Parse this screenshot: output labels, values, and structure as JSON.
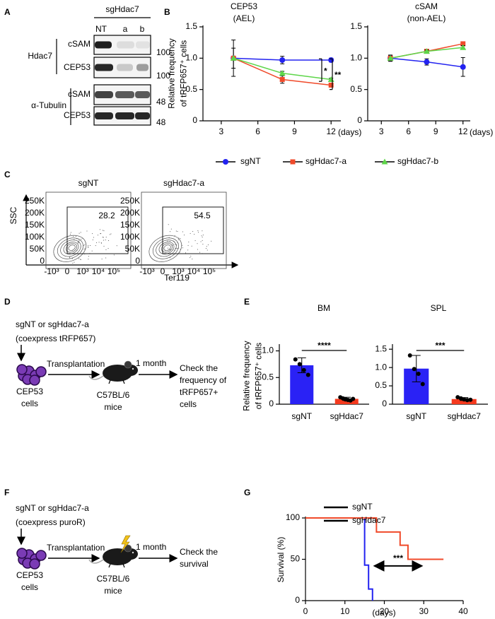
{
  "panel_letters": [
    "A",
    "B",
    "C",
    "D",
    "E",
    "F",
    "G"
  ],
  "blot": {
    "group": "sgHdac7",
    "lanes": [
      "NT",
      "a",
      "b"
    ],
    "proteins": [
      {
        "name": "Hdac7",
        "rows": [
          "cSAM",
          "CEP53"
        ],
        "markers": [
          100,
          100
        ]
      },
      {
        "name": "α-Tubulin",
        "rows": [
          "cSAM",
          "CEP53"
        ],
        "markers": [
          48,
          48
        ]
      }
    ]
  },
  "flow": {
    "y_label": "SSC",
    "x_label": "Ter119",
    "yticks": [
      "250K",
      "200K",
      "150K",
      "100K",
      "50K",
      "0"
    ],
    "xticks": [
      "-10³",
      "0",
      "10³",
      "10⁴",
      "10⁵"
    ],
    "samples": [
      {
        "name": "sgNT",
        "gate": 28.2
      },
      {
        "name": "sgHdac7-a",
        "gate": 54.5
      }
    ]
  },
  "schemes": [
    {
      "construct": [
        "sgNT or sgHdac7-a",
        "(coexpress tRFP657)"
      ],
      "step1": "Transplantation",
      "step2": "1 month",
      "cells": [
        "CEP53",
        "cells"
      ],
      "mice": [
        "C57BL/6",
        "mice"
      ],
      "readout": [
        "Check the",
        "frequency of",
        "tRFP657+",
        "cells"
      ]
    },
    {
      "construct": [
        "sgNT or sgHdac7-a",
        "(coexpress puroR)"
      ],
      "step1": "Transplantation",
      "step2": "1 month",
      "cells": [
        "CEP53",
        "cells"
      ],
      "mice": [
        "C57BL/6",
        "mice"
      ],
      "readout": [
        "Check the",
        "survival"
      ]
    }
  ],
  "chart_data": [
    {
      "type": "line",
      "title": "CEP53",
      "subtitle": "(AEL)",
      "y_label": [
        "Relative frequency",
        "of tRFP657⁺ cells"
      ],
      "x_label": "(days)",
      "x": [
        4,
        8,
        12
      ],
      "xlim": [
        1.5,
        12.8
      ],
      "xticks": [
        3,
        6,
        9,
        12
      ],
      "ylim": [
        0,
        1.5
      ],
      "yticks": [
        0,
        0.5,
        {
          "value": 1,
          "label": "1.0"
        },
        1.5
      ],
      "series": [
        {
          "name": "sgNT",
          "color": "#2323f0",
          "marker": "circle",
          "values": [
            1,
            0.97,
            0.97
          ],
          "errors": [
            0.02,
            0.06,
            0.03
          ]
        },
        {
          "name": "sgHdac7-a",
          "color": "#f04a2a",
          "marker": "square",
          "values": [
            1,
            0.66,
            0.57
          ],
          "errors": [
            0.29,
            0.06,
            0.02
          ]
        },
        {
          "name": "sgHdac7-b",
          "color": "#5ed64a",
          "marker": "triangle",
          "values": [
            1,
            0.76,
            0.66
          ],
          "errors": [
            0.16,
            0.03,
            0.02
          ]
        }
      ],
      "annotations": [
        "*",
        "**"
      ]
    },
    {
      "type": "line",
      "title": "cSAM",
      "subtitle": "(non-AEL)",
      "x_label": "(days)",
      "x": [
        4,
        8,
        12
      ],
      "xlim": [
        1.5,
        12.8
      ],
      "xticks": [
        3,
        6,
        9,
        12
      ],
      "ylim": [
        0,
        1.5
      ],
      "yticks": [
        0,
        0.5,
        {
          "value": 1,
          "label": "1.0"
        },
        1.5
      ],
      "series": [
        {
          "color": "#2323f0",
          "marker": "circle",
          "values": [
            1,
            0.94,
            0.86
          ],
          "errors": [
            0.04,
            0.05,
            0.15
          ]
        },
        {
          "color": "#f04a2a",
          "marker": "square",
          "values": [
            1,
            1.11,
            1.23
          ],
          "errors": [
            0.03,
            0.02,
            0.03
          ]
        },
        {
          "color": "#5ed64a",
          "marker": "triangle",
          "values": [
            1,
            1.11,
            1.17
          ],
          "errors": [
            0.05,
            0.02,
            0.03
          ]
        }
      ]
    },
    {
      "type": "bar",
      "title": "BM",
      "y_label": [
        "Relative frequency",
        "of tRFP657⁺ cells"
      ],
      "categories": [
        "sgNT",
        "sgHdac7"
      ],
      "colors": [
        "#2a22f5",
        "#f53a1e"
      ],
      "values": [
        0.73,
        0.1
      ],
      "errors": [
        0.14,
        0.03
      ],
      "points": [
        [
          0.84,
          0.75,
          0.64,
          0.55
        ],
        [
          0.13,
          0.11,
          0.09,
          0.08,
          0.07,
          0.1
        ]
      ],
      "ylim": [
        0,
        1.1
      ],
      "yticks": [
        0,
        0.5,
        {
          "value": 1,
          "label": "1.0"
        }
      ],
      "annotation": "****"
    },
    {
      "type": "bar",
      "title": "SPL",
      "categories": [
        "sgNT",
        "sgHdac7"
      ],
      "colors": [
        "#2a22f5",
        "#f53a1e"
      ],
      "values": [
        0.97,
        0.14
      ],
      "errors": [
        0.36,
        0.04
      ],
      "points": [
        [
          1.33,
          0.96,
          0.83,
          0.55
        ],
        [
          0.19,
          0.16,
          0.13,
          0.11,
          0.12
        ]
      ],
      "ylim": [
        0,
        1.6
      ],
      "yticks": [
        0,
        0.5,
        {
          "value": 1,
          "label": "1.0"
        },
        1.5
      ],
      "annotation": "***"
    },
    {
      "type": "line",
      "y_label": "Survival (%)",
      "x_label": "(days)",
      "xlim": [
        0,
        40
      ],
      "xticks": [
        0,
        10,
        20,
        30,
        40
      ],
      "ylim": [
        0,
        100
      ],
      "yticks": [
        0,
        50,
        100
      ],
      "series": [
        {
          "name": "sgNT",
          "color": "#2323f0",
          "x": [
            0,
            15,
            15,
            16,
            16,
            17,
            17
          ],
          "values": [
            100,
            100,
            43,
            43,
            14,
            14,
            0
          ]
        },
        {
          "name": "sgHdac7",
          "color": "#f04a2a",
          "x": [
            0,
            18,
            18,
            24,
            24,
            26,
            26,
            35
          ],
          "values": [
            100,
            100,
            83,
            83,
            67,
            67,
            50,
            50
          ]
        }
      ],
      "annotation": "***"
    }
  ]
}
